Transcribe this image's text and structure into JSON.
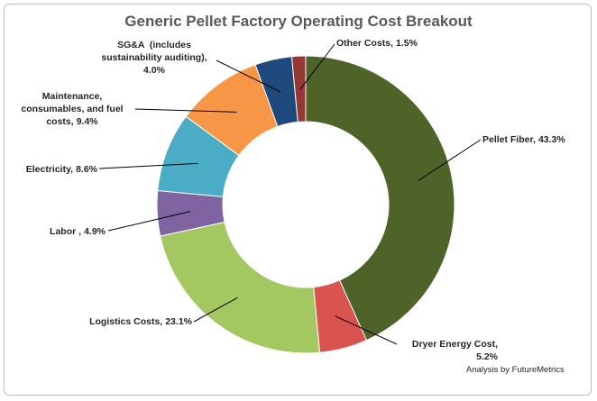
{
  "chart_data": {
    "type": "donut",
    "title": "Generic Pellet Factory Operating Cost Breakout",
    "categories": [
      "Pellet Fiber,",
      "Dryer Energy Cost,",
      "Logistics Costs,",
      "Labor ,",
      "Electricity,",
      "Maintenance, consumables, and fuel costs,",
      "SG&A  (includes sustainability auditing),",
      "Other Costs,"
    ],
    "values": [
      43.3,
      5.2,
      23.1,
      4.9,
      8.6,
      9.4,
      4.0,
      1.5
    ],
    "value_labels": [
      "43.3%",
      "5.2%",
      "23.1%",
      "4.9%",
      "8.6%",
      "9.4%",
      "4.0%",
      "1.5%"
    ],
    "colors": [
      "#4f6228",
      "#d9534f",
      "#a3c862",
      "#8064a2",
      "#4bacc6",
      "#f79646",
      "#1f497d",
      "#953735"
    ],
    "footnote": "Analysis by FutureMetrics"
  }
}
